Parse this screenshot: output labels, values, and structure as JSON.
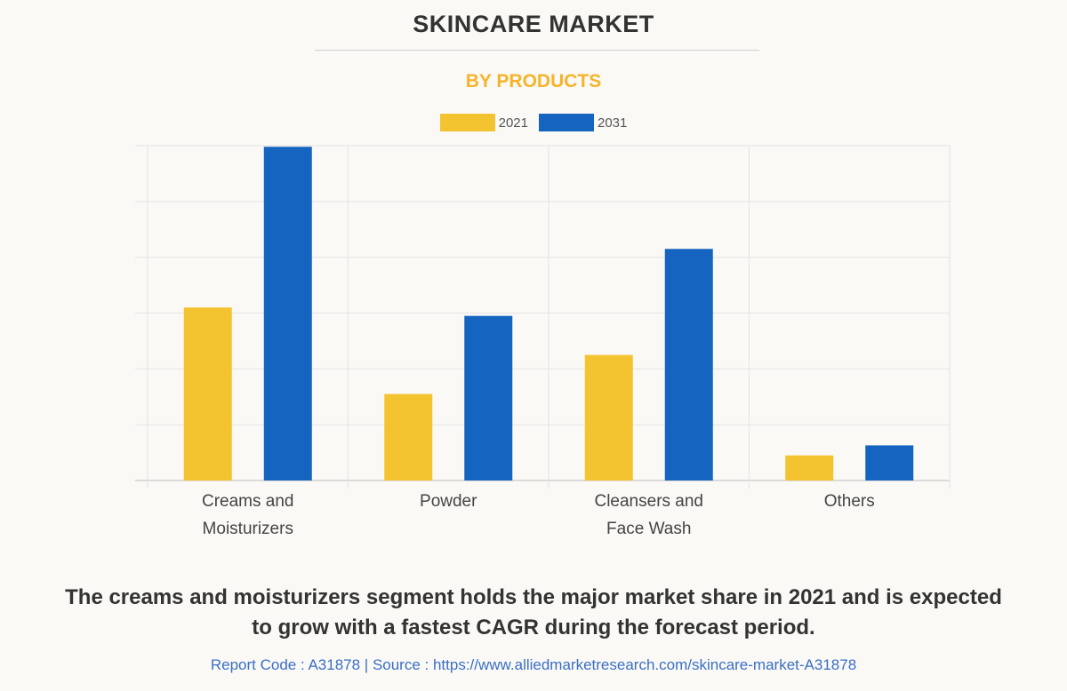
{
  "header": {
    "title": "SKINCARE MARKET",
    "subtitle": "BY PRODUCTS"
  },
  "chart_data": {
    "type": "bar",
    "title": "SKINCARE MARKET",
    "subtitle": "BY PRODUCTS",
    "xlabel": "",
    "ylabel": "",
    "ylim": [
      0,
      6
    ],
    "grid": true,
    "legend_position": "top-center",
    "categories": [
      [
        "Creams and",
        "Moisturizers"
      ],
      [
        "Powder"
      ],
      [
        "Cleansers and",
        "Face Wash"
      ],
      [
        "Others"
      ]
    ],
    "series": [
      {
        "name": "2021",
        "color": "#f4c430",
        "values": [
          3.1,
          1.55,
          2.25,
          0.45
        ]
      },
      {
        "name": "2031",
        "color": "#1565c0",
        "values": [
          5.98,
          2.95,
          4.15,
          0.63
        ]
      }
    ]
  },
  "caption": {
    "line1": "The creams and moisturizers segment holds the major market share in 2021 and is expected",
    "line2": "to grow with a fastest CAGR during the forecast period."
  },
  "footer": {
    "text": "Report Code : A31878  |  Source : https://www.alliedmarketresearch.com/skincare-market-A31878"
  }
}
